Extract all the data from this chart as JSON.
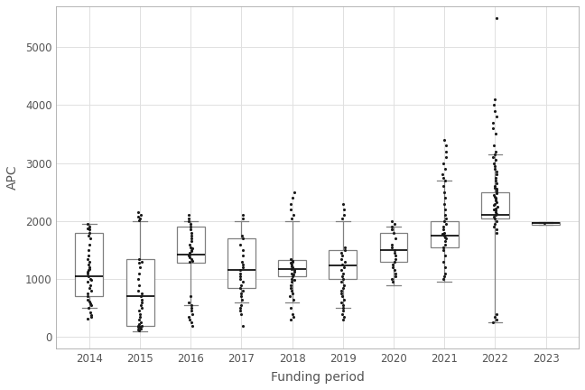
{
  "years": [
    2014,
    2015,
    2016,
    2017,
    2018,
    2019,
    2020,
    2021,
    2022,
    2023
  ],
  "boxes": {
    "2014": {
      "q1": 700,
      "median": 1050,
      "q3": 1800,
      "whislo": 500,
      "whishi": 1950
    },
    "2015": {
      "q1": 200,
      "median": 700,
      "q3": 1350,
      "whislo": 100,
      "whishi": 2000
    },
    "2016": {
      "q1": 1280,
      "median": 1420,
      "q3": 1900,
      "whislo": 550,
      "whishi": 2000
    },
    "2017": {
      "q1": 850,
      "median": 1150,
      "q3": 1700,
      "whislo": 600,
      "whishi": 2000
    },
    "2018": {
      "q1": 1050,
      "median": 1180,
      "q3": 1330,
      "whislo": 600,
      "whishi": 2000
    },
    "2019": {
      "q1": 1000,
      "median": 1230,
      "q3": 1500,
      "whislo": 500,
      "whishi": 2000
    },
    "2020": {
      "q1": 1300,
      "median": 1500,
      "q3": 1800,
      "whislo": 900,
      "whishi": 1900
    },
    "2021": {
      "q1": 1550,
      "median": 1750,
      "q3": 2000,
      "whislo": 950,
      "whishi": 2700
    },
    "2022": {
      "q1": 2050,
      "median": 2100,
      "q3": 2500,
      "whislo": 250,
      "whishi": 3150
    },
    "2023": {
      "q1": 1940,
      "median": 1960,
      "q3": 1985,
      "whislo": 1940,
      "whishi": 1985
    }
  },
  "scatter_points": {
    "2014": [
      500,
      550,
      580,
      620,
      650,
      700,
      750,
      800,
      850,
      900,
      950,
      980,
      1000,
      1050,
      1100,
      1120,
      1150,
      1180,
      1200,
      1250,
      1300,
      1350,
      1400,
      1500,
      1600,
      1700,
      1750,
      1800,
      1850,
      1880,
      1900,
      1950,
      310,
      350,
      380,
      430
    ],
    "2015": [
      110,
      130,
      150,
      160,
      170,
      180,
      190,
      200,
      220,
      250,
      300,
      350,
      400,
      450,
      500,
      550,
      600,
      650,
      700,
      750,
      800,
      900,
      1000,
      1100,
      1200,
      1280,
      1300,
      1350,
      2020,
      2050,
      2080,
      2100,
      2150
    ],
    "2016": [
      200,
      250,
      300,
      350,
      400,
      450,
      500,
      550,
      600,
      700,
      1300,
      1320,
      1350,
      1380,
      1400,
      1420,
      1450,
      1480,
      1500,
      1530,
      1550,
      1600,
      1650,
      1700,
      1750,
      1800,
      1850,
      1900,
      1950,
      2000,
      2050,
      2100
    ],
    "2017": [
      650,
      700,
      750,
      800,
      850,
      900,
      950,
      1000,
      1050,
      1100,
      1150,
      1200,
      1250,
      1300,
      1400,
      1500,
      1600,
      1700,
      1750,
      2050,
      2100,
      400,
      450,
      500,
      550,
      200
    ],
    "2018": [
      650,
      700,
      750,
      800,
      850,
      900,
      950,
      980,
      1000,
      1050,
      1080,
      1100,
      1120,
      1150,
      1180,
      1200,
      1220,
      1250,
      1280,
      1300,
      1320,
      1350,
      2050,
      2100,
      2200,
      2300,
      2400,
      2500,
      500,
      400,
      350,
      300
    ],
    "2019": [
      350,
      400,
      450,
      500,
      550,
      600,
      650,
      700,
      750,
      800,
      850,
      900,
      950,
      1000,
      1050,
      1100,
      1150,
      1200,
      1250,
      1300,
      1350,
      1400,
      1450,
      1500,
      1550,
      2050,
      2100,
      2200,
      2300,
      300
    ],
    "2020": [
      950,
      1000,
      1050,
      1100,
      1150,
      1200,
      1250,
      1300,
      1350,
      1400,
      1450,
      1500,
      1550,
      1600,
      1700,
      1800,
      1850,
      1900,
      1950,
      2000
    ],
    "2021": [
      1000,
      1050,
      1100,
      1200,
      1300,
      1400,
      1500,
      1550,
      1600,
      1650,
      1700,
      1720,
      1750,
      1780,
      1800,
      1850,
      1900,
      1950,
      2000,
      2050,
      2100,
      2200,
      2300,
      2400,
      2500,
      2600,
      2700,
      2750,
      2800,
      2900,
      3000,
      3100,
      3200,
      3300,
      3400
    ],
    "2022": [
      250,
      300,
      350,
      400,
      1800,
      1850,
      1900,
      1950,
      2000,
      2050,
      2080,
      2100,
      2120,
      2150,
      2180,
      2200,
      2220,
      2250,
      2280,
      2300,
      2320,
      2350,
      2380,
      2400,
      2420,
      2450,
      2480,
      2500,
      2520,
      2550,
      2580,
      2600,
      2650,
      2700,
      2750,
      2800,
      2850,
      2900,
      2950,
      3000,
      3050,
      3100,
      3150,
      3200,
      3300,
      3500,
      3600,
      3700,
      3800,
      3900,
      4000,
      4100,
      5500
    ],
    "2023": [
      1960
    ]
  },
  "ylabel": "APC",
  "xlabel": "Funding period",
  "ylim": [
    -200,
    5700
  ],
  "yticks": [
    0,
    1000,
    2000,
    3000,
    4000,
    5000
  ],
  "background_color": "#ffffff",
  "grid_color": "#e0e0e0",
  "box_edge_color": "#808080",
  "median_color": "#000000",
  "whisker_color": "#808080",
  "scatter_color": "#1a1a1a",
  "box_fill_color": "#ffffff",
  "box_width": 0.55,
  "scatter_size": 5,
  "jitter": 0.04
}
